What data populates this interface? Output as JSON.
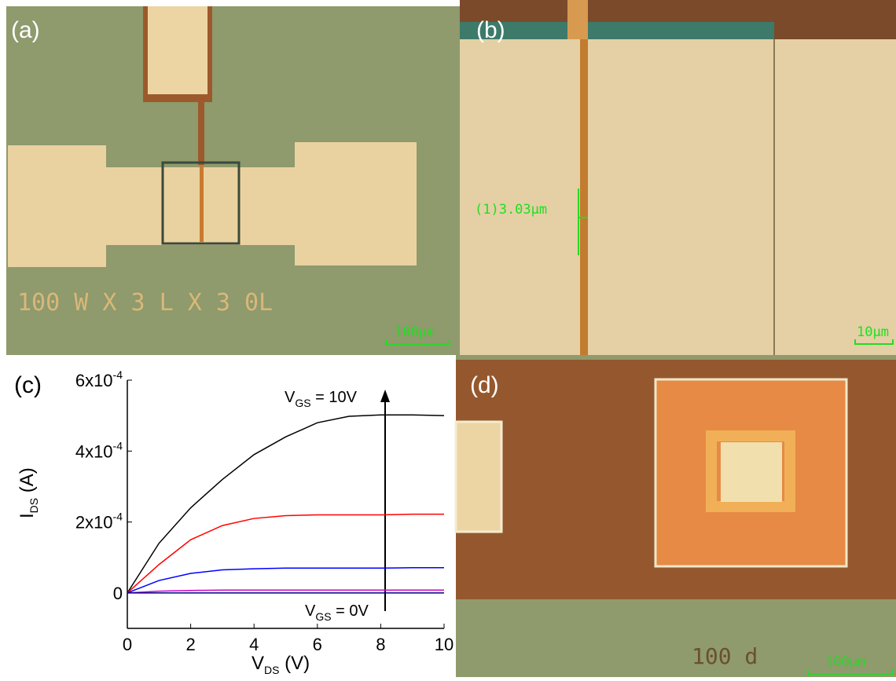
{
  "panels": [
    {
      "label": "(a)",
      "text": "100 W X 3 L X 3 0L",
      "scale": "100μm"
    },
    {
      "label": "(b)",
      "measurement": "(1)3.03μm",
      "scale": "10μm"
    },
    {
      "label": "(c)"
    },
    {
      "label": "(d)",
      "text": "100 d",
      "scale": "100μm"
    }
  ],
  "chart_data": {
    "type": "line",
    "x": [
      0,
      1,
      2,
      3,
      4,
      5,
      6,
      7,
      8,
      9,
      10
    ],
    "series": [
      {
        "color": "#000000",
        "values": [
          0,
          0.00014,
          0.00024,
          0.00032,
          0.00039,
          0.00044,
          0.00048,
          0.000498,
          0.000502,
          0.000502,
          0.0005
        ]
      },
      {
        "color": "#ff0000",
        "values": [
          0,
          8e-05,
          0.00015,
          0.00019,
          0.00021,
          0.000218,
          0.00022,
          0.00022,
          0.00022,
          0.000222,
          0.000222
        ]
      },
      {
        "color": "#0000ff",
        "values": [
          0,
          3.5e-05,
          5.5e-05,
          6.5e-05,
          6.8e-05,
          7e-05,
          7e-05,
          7e-05,
          7e-05,
          7.1e-05,
          7.1e-05
        ]
      },
      {
        "color": "#cc00cc",
        "values": [
          0,
          5e-06,
          7e-06,
          8e-06,
          8e-06,
          8e-06,
          8e-06,
          8e-06,
          8e-06,
          8e-06,
          8e-06
        ]
      },
      {
        "color": "#000080",
        "values": [
          0,
          0,
          0,
          0,
          0,
          0,
          0,
          0,
          0,
          0,
          0
        ]
      }
    ],
    "xlim": [
      0,
      10
    ],
    "xticks": [
      0,
      2,
      4,
      6,
      8,
      10
    ],
    "ylim": [
      -0.0001,
      0.0006
    ],
    "yticks": [
      0,
      {
        "value": 0.0002,
        "label": "2x10",
        "exponent": "-4"
      },
      {
        "value": 0.0004,
        "label": "4x10",
        "exponent": "-4"
      },
      {
        "value": 0.0006,
        "label": "6x10",
        "exponent": "-4"
      }
    ],
    "xlabel": {
      "main": "V",
      "sub": "DS",
      "rest": " (V)"
    },
    "ylabel": {
      "main": "I",
      "sub": "DS",
      "rest": " (A)"
    },
    "annotations": [
      {
        "main": "V",
        "sub": "GS",
        "rest": " = 10V"
      },
      {
        "main": "V",
        "sub": "GS",
        "rest": " = 0V"
      }
    ]
  }
}
